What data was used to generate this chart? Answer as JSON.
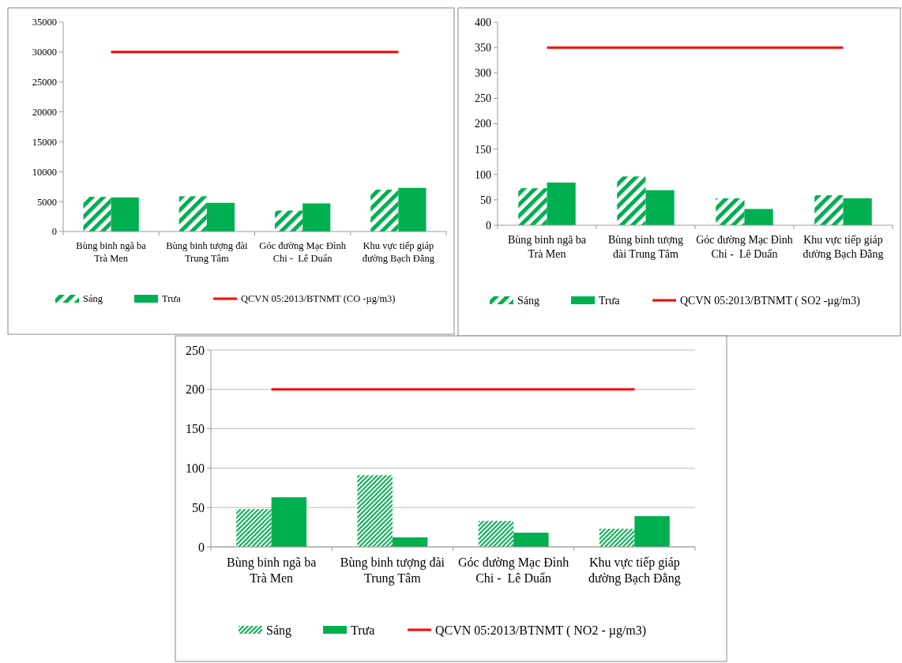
{
  "chart_data": [
    {
      "type": "bar",
      "categories": [
        "Bùng binh ngã ba Trà Men",
        "Bùng binh tượng đài Trung Tâm",
        "Góc đường Mạc Đình Chi -  Lê Duẩn",
        "Khu vực tiếp giáp đường Bạch Đằng"
      ],
      "ylim": [
        0,
        35000
      ],
      "yticks": [
        0,
        5000,
        10000,
        15000,
        20000,
        25000,
        30000,
        35000
      ],
      "grid": false,
      "legend": "bottom",
      "series": [
        {
          "name": "Sáng",
          "color": "#00b050",
          "values": [
            5800,
            5900,
            3500,
            7000
          ]
        },
        {
          "name": "Trưa",
          "color": "#00b050",
          "values": [
            5700,
            4800,
            4700,
            7300
          ]
        },
        {
          "name": "QCVN 05:2013/BTNMT (CO -µg/m3)",
          "type": "line",
          "color": "#ff0000",
          "marker": "none",
          "values": [
            30000,
            30000,
            30000,
            30000
          ]
        }
      ]
    },
    {
      "type": "bar",
      "categories": [
        "Bùng binh ngã ba Trà Men",
        "Bùng binh tượng đài Trung Tâm",
        "Góc đường Mạc Đình Chi -  Lê Duẩn",
        "Khu vực tiếp giáp đường Bạch Đằng"
      ],
      "ylim": [
        0,
        400
      ],
      "yticks": [
        0,
        50,
        100,
        150,
        200,
        250,
        300,
        350,
        400
      ],
      "grid": false,
      "legend": "bottom",
      "series": [
        {
          "name": "Sáng",
          "color": "#00b050",
          "values": [
            73,
            96,
            53,
            59
          ]
        },
        {
          "name": "Trưa",
          "color": "#00b050",
          "values": [
            84,
            69,
            32,
            53
          ]
        },
        {
          "name": "QCVN 05:2013/BTNMT  ( SO2 -µg/m3)",
          "type": "line",
          "color": "#ff0000",
          "marker": "none",
          "values": [
            350,
            350,
            350,
            350
          ]
        }
      ]
    },
    {
      "type": "bar",
      "categories": [
        "Bùng binh ngã ba Trà Men",
        "Bùng binh tượng đài Trung Tâm",
        "Góc đường Mạc Đình Chi -  Lê Duẩn",
        "Khu vực tiếp giáp đường Bạch Đằng"
      ],
      "ylim": [
        0,
        250
      ],
      "yticks": [
        0,
        50,
        100,
        150,
        200,
        250
      ],
      "grid": "y",
      "legend": "bottom",
      "series": [
        {
          "name": "Sáng",
          "color": "#00b050",
          "values": [
            48,
            91,
            33,
            23
          ]
        },
        {
          "name": "Trưa",
          "color": "#00b050",
          "values": [
            63,
            12,
            18,
            39
          ]
        },
        {
          "name": "QCVN 05:2013/BTNMT ( NO2 - µg/m3)",
          "type": "line",
          "color": "#ff0000",
          "marker": "none",
          "values": [
            200,
            200,
            200,
            200
          ]
        }
      ]
    }
  ]
}
